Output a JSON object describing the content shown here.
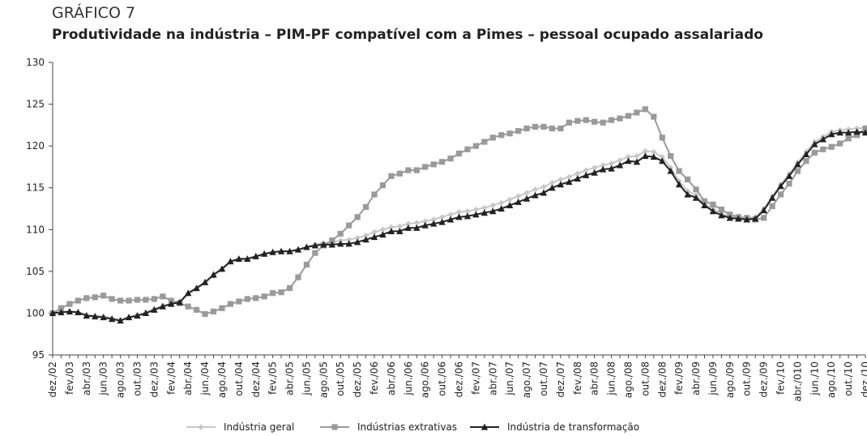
{
  "chart_data": {
    "type": "line",
    "title": "GRÁFICO 7",
    "subtitle": "Produtividade na indústria – PIM-PF compatível com a Pimes – pessoal ocupado assalariado",
    "categories": [
      "dez./02",
      null,
      "fev./03",
      null,
      "abr./03",
      null,
      "jun./03",
      null,
      "ago./03",
      null,
      "out./03",
      null,
      "dez./03",
      null,
      "fev./04",
      null,
      "abr./04",
      null,
      "jun./04",
      null,
      "ago./04",
      null,
      "out./04",
      null,
      "dez./04",
      null,
      "fev./05",
      null,
      "abr./05",
      null,
      "jun./05",
      null,
      "ago./05",
      null,
      "out./05",
      null,
      "dez./05",
      null,
      "fev./06",
      null,
      "abr./06",
      null,
      "jun./06",
      null,
      "ago./06",
      null,
      "out./06",
      null,
      "dez./06",
      null,
      "fev./07",
      null,
      "abr./07",
      null,
      "jun./07",
      null,
      "ago./07",
      null,
      "out./07",
      null,
      "dez./07",
      null,
      "fev./08",
      null,
      "abr./08",
      null,
      "jun./08",
      null,
      "ago./08",
      null,
      "out./08",
      null,
      "dez./08",
      null,
      "fev./09",
      null,
      "abr./09",
      null,
      "jun./09",
      null,
      "ago./09",
      null,
      "out./09",
      null,
      "dez./09",
      null,
      "fev./10",
      null,
      "abr./010",
      null,
      "jun./10",
      null,
      "ago./10",
      null,
      "out./10",
      null,
      "dez./10"
    ],
    "series": [
      {
        "name": "Indústria geral",
        "color": "#c8c8c8",
        "marker": "diamond",
        "values": [
          100,
          100.1,
          100.2,
          100.1,
          99.8,
          99.7,
          99.6,
          99.4,
          99.2,
          99.5,
          99.8,
          100.1,
          100.5,
          100.9,
          101.1,
          101.3,
          102.3,
          102.9,
          103.6,
          104.5,
          105.2,
          106.1,
          106.4,
          106.4,
          106.7,
          107,
          107.3,
          107.4,
          107.4,
          107.6,
          107.9,
          108.2,
          108.4,
          108.5,
          108.7,
          108.8,
          109,
          109.3,
          109.7,
          110,
          110.3,
          110.4,
          110.7,
          110.8,
          111,
          111.2,
          111.5,
          111.8,
          112.1,
          112.2,
          112.4,
          112.6,
          112.9,
          113.2,
          113.6,
          114,
          114.4,
          114.8,
          115.1,
          115.6,
          116,
          116.3,
          116.7,
          117.1,
          117.4,
          117.7,
          117.9,
          118.3,
          118.7,
          118.8,
          119.4,
          119.3,
          118.7,
          117.4,
          115.8,
          114.6,
          114.1,
          113.1,
          112.5,
          111.9,
          111.6,
          111.5,
          111.4,
          111.5,
          112.5,
          114,
          115.4,
          116.7,
          118,
          119.3,
          120.5,
          121.1,
          121.7,
          121.9,
          122,
          122.1,
          122.2
        ]
      },
      {
        "name": "Indústrias extrativas",
        "color": "#9a9a9a",
        "marker": "square",
        "values": [
          100,
          100.6,
          101.1,
          101.5,
          101.8,
          101.9,
          102.1,
          101.7,
          101.5,
          101.5,
          101.6,
          101.6,
          101.7,
          102,
          101.5,
          101.2,
          100.8,
          100.4,
          99.9,
          100.2,
          100.6,
          101.1,
          101.4,
          101.7,
          101.8,
          102,
          102.4,
          102.5,
          103,
          104.3,
          105.8,
          107.2,
          108.1,
          108.7,
          109.5,
          110.5,
          111.5,
          112.7,
          114.2,
          115.3,
          116.4,
          116.7,
          117.1,
          117.1,
          117.5,
          117.8,
          118.1,
          118.5,
          119.1,
          119.6,
          120,
          120.5,
          121,
          121.3,
          121.5,
          121.8,
          122.1,
          122.3,
          122.3,
          122.1,
          122.1,
          122.8,
          123,
          123.1,
          122.9,
          122.8,
          123.1,
          123.3,
          123.6,
          124,
          124.4,
          123.5,
          121,
          118.8,
          117,
          116,
          114.8,
          113.4,
          113,
          112.4,
          111.8,
          111.5,
          111.4,
          111.2,
          111.4,
          112.8,
          114.2,
          115.5,
          117,
          118.2,
          119.2,
          119.6,
          119.9,
          120.3,
          120.9,
          121.3,
          122.1
        ]
      },
      {
        "name": "Indústria de transformação",
        "color": "#222222",
        "marker": "triangle",
        "values": [
          100,
          100.1,
          100.2,
          100.1,
          99.7,
          99.6,
          99.5,
          99.3,
          99.1,
          99.5,
          99.7,
          100,
          100.4,
          100.8,
          101.1,
          101.3,
          102.4,
          103,
          103.7,
          104.6,
          105.3,
          106.2,
          106.5,
          106.5,
          106.8,
          107.1,
          107.3,
          107.4,
          107.4,
          107.6,
          107.9,
          108.1,
          108.2,
          108.2,
          108.3,
          108.3,
          108.5,
          108.8,
          109.1,
          109.4,
          109.8,
          109.8,
          110.2,
          110.2,
          110.5,
          110.7,
          110.9,
          111.2,
          111.5,
          111.6,
          111.8,
          112,
          112.2,
          112.5,
          112.9,
          113.3,
          113.7,
          114.1,
          114.4,
          115,
          115.4,
          115.7,
          116.1,
          116.5,
          116.8,
          117.2,
          117.3,
          117.7,
          118.2,
          118.1,
          118.8,
          118.7,
          118.2,
          117,
          115.4,
          114.2,
          113.8,
          112.9,
          112.2,
          111.7,
          111.4,
          111.3,
          111.2,
          111.3,
          112.3,
          113.8,
          115.2,
          116.4,
          117.8,
          119,
          120.2,
          120.8,
          121.4,
          121.6,
          121.6,
          121.7,
          121.6
        ]
      }
    ],
    "ylim": [
      95,
      130
    ],
    "yticks": [
      95,
      100,
      105,
      110,
      115,
      120,
      125,
      130
    ],
    "grid": false,
    "legend": "bottom"
  }
}
